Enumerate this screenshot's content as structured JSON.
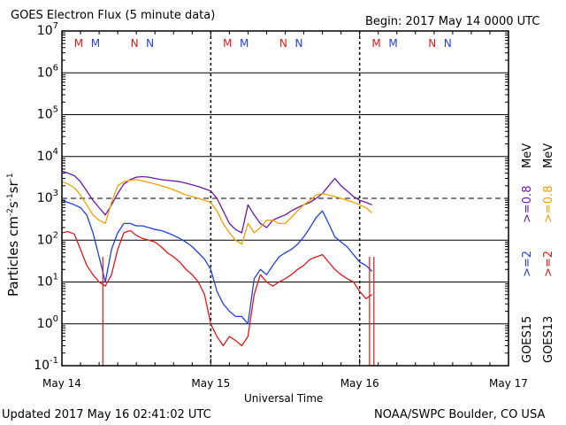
{
  "header": {
    "title": "GOES Electron Flux (5 minute data)",
    "begin": "Begin: 2017 May 14 0000 UTC"
  },
  "footer": {
    "updated": "Updated 2017 May 16 02:41:02 UTC",
    "credit": "NOAA/SWPC Boulder, CO USA"
  },
  "legend": {
    "goes15": "GOES15",
    "goes13": "GOES13",
    "e2_15": ">=2",
    "e2_13": ">=2",
    "e08_15": ">=0.8",
    "e08_13": ">=0.8",
    "mev": "MeV"
  },
  "colors": {
    "goes15_e2": "#1f3fe0",
    "goes13_e2": "#e01818",
    "goes15_e08": "#6a17a8",
    "goes13_e08": "#f0a000"
  },
  "chart_data": {
    "type": "line",
    "title": "GOES Electron Flux (5 minute data)",
    "xlabel": "Universal Time",
    "ylabel": "Particles cm^-2 s^-1 sr^-1",
    "yscale": "log",
    "ylim": [
      0.1,
      10000000
    ],
    "xlim": [
      0,
      72
    ],
    "x_unit": "hours since 2017 May 14 0000 UTC",
    "x_ticks": [
      {
        "x": 0,
        "label": "May 14"
      },
      {
        "x": 24,
        "label": "May 15"
      },
      {
        "x": 48,
        "label": "May 16"
      },
      {
        "x": 72,
        "label": "May 17"
      }
    ],
    "y_ticks": [
      {
        "base": "10",
        "exp": "-1"
      },
      {
        "base": "10",
        "exp": "0"
      },
      {
        "base": "10",
        "exp": "1"
      },
      {
        "base": "10",
        "exp": "2"
      },
      {
        "base": "10",
        "exp": "3"
      },
      {
        "base": "10",
        "exp": "4"
      },
      {
        "base": "10",
        "exp": "5"
      },
      {
        "base": "10",
        "exp": "6"
      },
      {
        "base": "10",
        "exp": "7"
      }
    ],
    "threshold": 1000,
    "grid": true,
    "mn_markers": [
      {
        "x": 2.7,
        "label": "M",
        "sat": "goes13"
      },
      {
        "x": 5.4,
        "label": "M",
        "sat": "goes15"
      },
      {
        "x": 11.7,
        "label": "N",
        "sat": "goes13"
      },
      {
        "x": 14.2,
        "label": "N",
        "sat": "goes15"
      },
      {
        "x": 26.7,
        "label": "M",
        "sat": "goes13"
      },
      {
        "x": 29.4,
        "label": "M",
        "sat": "goes15"
      },
      {
        "x": 35.7,
        "label": "N",
        "sat": "goes13"
      },
      {
        "x": 38.2,
        "label": "N",
        "sat": "goes15"
      },
      {
        "x": 50.7,
        "label": "M",
        "sat": "goes13"
      },
      {
        "x": 53.4,
        "label": "M",
        "sat": "goes15"
      },
      {
        "x": 59.7,
        "label": "N",
        "sat": "goes13"
      },
      {
        "x": 62.2,
        "label": "N",
        "sat": "goes15"
      }
    ],
    "series": [
      {
        "name": "GOES15 >=0.8 MeV",
        "color": "#6a17a8",
        "x": [
          0,
          1,
          2,
          3,
          4,
          5,
          6,
          7,
          8,
          9,
          10,
          11,
          12,
          13,
          14,
          15,
          16,
          17,
          18,
          19,
          20,
          21,
          22,
          23,
          24,
          25,
          26,
          27,
          28,
          29,
          30,
          31,
          32,
          33,
          34,
          35,
          36,
          37,
          38,
          39,
          40,
          41,
          42,
          43,
          44,
          45,
          46,
          47,
          48,
          49,
          50
        ],
        "y": [
          4500,
          4000,
          3500,
          2500,
          1500,
          900,
          600,
          400,
          700,
          1300,
          2200,
          2800,
          3200,
          3300,
          3200,
          3000,
          2800,
          2700,
          2600,
          2500,
          2300,
          2100,
          1900,
          1700,
          1500,
          1000,
          500,
          250,
          180,
          150,
          700,
          400,
          250,
          200,
          300,
          350,
          400,
          500,
          600,
          700,
          800,
          1000,
          1300,
          2000,
          3000,
          2000,
          1500,
          1100,
          900,
          800,
          700
        ]
      },
      {
        "name": "GOES13 >=0.8 MeV",
        "color": "#f0a000",
        "x": [
          0,
          1,
          2,
          3,
          4,
          5,
          6,
          7,
          8,
          9,
          10,
          11,
          12,
          13,
          14,
          15,
          16,
          17,
          18,
          19,
          20,
          21,
          22,
          23,
          24,
          25,
          26,
          27,
          28,
          29,
          30,
          31,
          32,
          33,
          34,
          35,
          36,
          37,
          38,
          39,
          40,
          41,
          42,
          43,
          44,
          45,
          46,
          47,
          48,
          49,
          50
        ],
        "y": [
          2500,
          2200,
          1800,
          1200,
          700,
          400,
          300,
          250,
          800,
          2000,
          2500,
          2700,
          2800,
          2600,
          2400,
          2200,
          2000,
          1800,
          1600,
          1400,
          1200,
          1100,
          1000,
          900,
          800,
          500,
          250,
          150,
          100,
          80,
          250,
          150,
          200,
          300,
          300,
          250,
          250,
          350,
          500,
          700,
          900,
          1200,
          1300,
          1200,
          1100,
          1000,
          900,
          800,
          700,
          600,
          450
        ]
      },
      {
        "name": "GOES15 >=2 MeV",
        "color": "#1f3fe0",
        "x": [
          0,
          1,
          2,
          3,
          4,
          5,
          6,
          7,
          8,
          9,
          10,
          11,
          12,
          13,
          14,
          15,
          16,
          17,
          18,
          19,
          20,
          21,
          22,
          23,
          24,
          25,
          26,
          27,
          28,
          29,
          30,
          31,
          32,
          33,
          34,
          35,
          36,
          37,
          38,
          39,
          40,
          41,
          42,
          43,
          44,
          45,
          46,
          47,
          48,
          49,
          50
        ],
        "y": [
          900,
          800,
          700,
          600,
          400,
          150,
          40,
          10,
          60,
          150,
          250,
          250,
          220,
          220,
          200,
          180,
          170,
          150,
          130,
          110,
          90,
          70,
          50,
          35,
          20,
          6,
          3,
          2,
          1.5,
          1.5,
          1,
          12,
          20,
          15,
          25,
          40,
          50,
          60,
          80,
          120,
          200,
          350,
          500,
          250,
          120,
          90,
          70,
          45,
          30,
          25,
          18
        ]
      },
      {
        "name": "GOES13 >=2 MeV",
        "color": "#e01818",
        "x": [
          0,
          1,
          2,
          3,
          4,
          5,
          6,
          7,
          8,
          9,
          10,
          11,
          12,
          13,
          14,
          15,
          16,
          17,
          18,
          19,
          20,
          21,
          22,
          23,
          24,
          25,
          26,
          27,
          28,
          29,
          30,
          31,
          32,
          33,
          34,
          35,
          36,
          37,
          38,
          39,
          40,
          41,
          42,
          43,
          44,
          45,
          46,
          47,
          48,
          49,
          50
        ],
        "y": [
          150,
          160,
          140,
          60,
          25,
          15,
          10,
          8,
          15,
          60,
          150,
          170,
          130,
          110,
          100,
          90,
          70,
          50,
          40,
          30,
          20,
          15,
          10,
          5,
          1,
          0.5,
          0.3,
          0.5,
          0.4,
          0.3,
          0.5,
          5,
          15,
          10,
          8,
          10,
          12,
          15,
          20,
          25,
          35,
          40,
          45,
          30,
          20,
          15,
          12,
          10,
          6,
          4,
          5
        ]
      }
    ],
    "drop_lines": [
      {
        "x": 6.6,
        "color": "#e01818"
      },
      {
        "x": 49.6,
        "color": "#e01818"
      },
      {
        "x": 50.3,
        "color": "#e01818"
      }
    ]
  }
}
